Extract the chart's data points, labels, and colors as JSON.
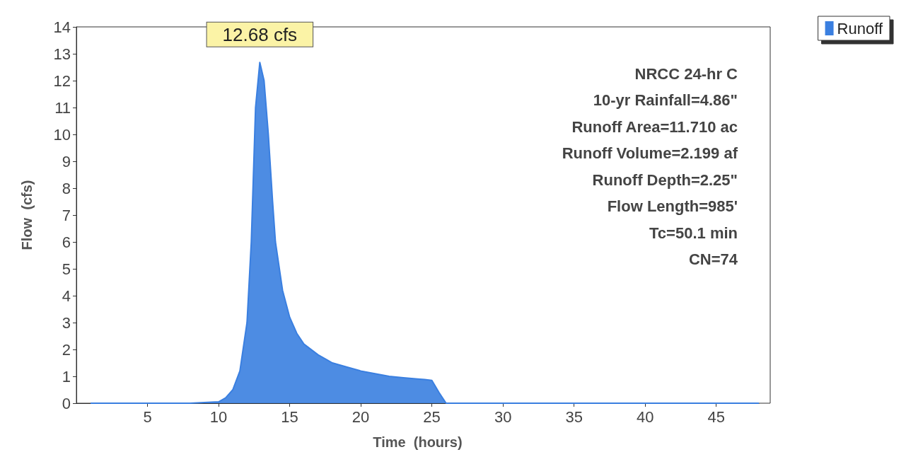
{
  "chart_data": {
    "type": "area",
    "xlabel": "Time  (hours)",
    "ylabel": "Flow  (cfs)",
    "x": [
      1,
      4,
      8,
      10,
      10.5,
      11,
      11.5,
      12,
      12.3,
      12.6,
      12.9,
      13.2,
      13.5,
      13.8,
      14,
      14.5,
      15,
      15.5,
      16,
      17,
      18,
      19,
      20,
      21,
      22,
      23,
      24,
      24.5,
      25,
      25.5,
      26,
      30,
      35,
      40,
      45,
      48
    ],
    "series": [
      {
        "name": "Runoff",
        "color": "#3a7fe0",
        "values": [
          0,
          0,
          0,
          0.05,
          0.2,
          0.5,
          1.2,
          3,
          6,
          11,
          12.68,
          12,
          10,
          7.5,
          6,
          4.2,
          3.2,
          2.6,
          2.2,
          1.8,
          1.5,
          1.35,
          1.2,
          1.1,
          1.0,
          0.95,
          0.9,
          0.88,
          0.85,
          0.4,
          0,
          0,
          0,
          0,
          0,
          0
        ]
      }
    ],
    "xlim": [
      0,
      48
    ],
    "xticks": [
      5,
      10,
      15,
      20,
      25,
      30,
      35,
      40,
      45
    ],
    "ylim": [
      0,
      14
    ],
    "yticks": [
      0,
      1,
      2,
      3,
      4,
      5,
      6,
      7,
      8,
      9,
      10,
      11,
      12,
      13,
      14
    ],
    "grid": false,
    "legend": "top right",
    "marker": "none",
    "annotations": [
      {
        "text": "12.68 cfs",
        "x": 12.9,
        "y": 12.68
      },
      "NRCC 24-hr C",
      "10-yr Rainfall=4.86\"",
      "Runoff Area=11.710 ac",
      "Runoff Volume=2.199 af",
      "Runoff Depth=2.25\"",
      "Flow Length=985'",
      "Tc=50.1 min",
      "CN=74"
    ]
  }
}
